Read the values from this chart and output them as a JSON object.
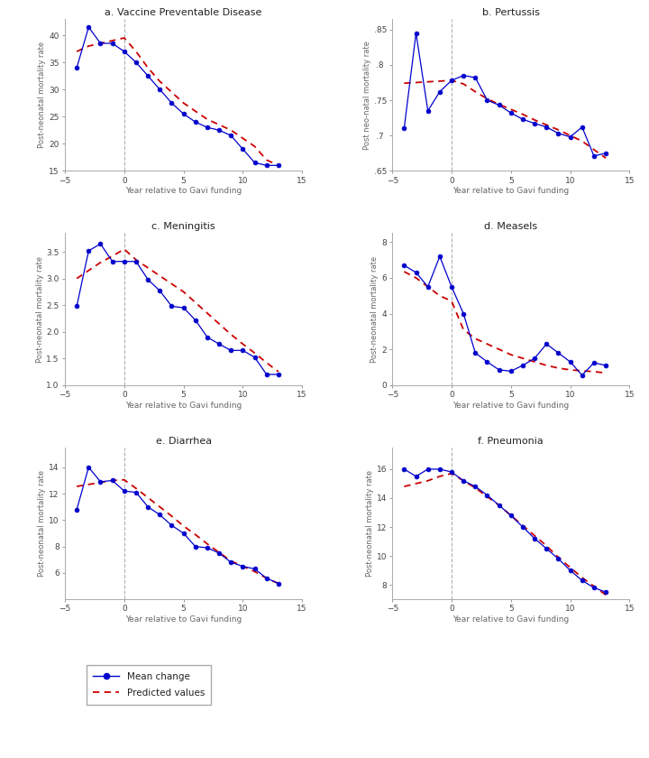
{
  "panels": [
    {
      "title": "a. Vaccine Preventable Disease",
      "ylabel": "Post-neonatal mortality rate",
      "xlabel": "Year relative to Gavi funding",
      "xlim": [
        -5,
        15
      ],
      "ylim": [
        15,
        43
      ],
      "yticks": [
        15,
        20,
        25,
        30,
        35,
        40
      ],
      "xticks": [
        -5,
        0,
        5,
        10,
        15
      ],
      "mean_x": [
        -4,
        -3,
        -2,
        -1,
        0,
        1,
        2,
        3,
        4,
        5,
        6,
        7,
        8,
        9,
        10,
        11,
        12,
        13
      ],
      "mean_y": [
        34.0,
        41.5,
        38.5,
        38.5,
        37.0,
        35.0,
        32.5,
        30.0,
        27.5,
        25.5,
        24.0,
        23.0,
        22.5,
        21.5,
        19.0,
        16.5,
        16.0,
        16.0
      ],
      "pred_x": [
        -4,
        -3,
        -2,
        -1,
        0,
        1,
        2,
        3,
        4,
        5,
        6,
        7,
        8,
        9,
        10,
        11,
        12,
        13
      ],
      "pred_y": [
        37.0,
        38.0,
        38.5,
        39.0,
        39.5,
        37.0,
        34.0,
        31.5,
        29.5,
        27.5,
        26.0,
        24.5,
        23.5,
        22.5,
        21.0,
        19.5,
        17.0,
        16.0
      ]
    },
    {
      "title": "b. Pertussis",
      "ylabel": "Post neo-natal mortality rate",
      "xlabel": "Year relative to Gavi funding",
      "xlim": [
        -5,
        15
      ],
      "ylim": [
        0.65,
        0.865
      ],
      "yticks": [
        0.65,
        0.7,
        0.75,
        0.8,
        0.85
      ],
      "ytick_labels": [
        ".65",
        ".7 ",
        ".75",
        ".8 ",
        ".85"
      ],
      "xticks": [
        -5,
        0,
        5,
        10,
        15
      ],
      "mean_x": [
        -4,
        -3,
        -2,
        -1,
        0,
        1,
        2,
        3,
        4,
        5,
        6,
        7,
        8,
        9,
        10,
        11,
        12,
        13
      ],
      "mean_y": [
        0.71,
        0.845,
        0.735,
        0.762,
        0.778,
        0.785,
        0.782,
        0.75,
        0.743,
        0.732,
        0.723,
        0.717,
        0.712,
        0.703,
        0.698,
        0.712,
        0.671,
        0.675
      ],
      "pred_x": [
        -4,
        -3,
        -2,
        -1,
        0,
        1,
        2,
        3,
        4,
        5,
        6,
        7,
        8,
        9,
        10,
        11,
        12,
        13
      ],
      "pred_y": [
        0.774,
        0.775,
        0.776,
        0.777,
        0.778,
        0.773,
        0.762,
        0.752,
        0.744,
        0.737,
        0.73,
        0.722,
        0.715,
        0.708,
        0.7,
        0.692,
        0.68,
        0.668
      ]
    },
    {
      "title": "c. Meningitis",
      "ylabel": "Post-neonatal mortality rate",
      "xlabel": "Year relative to Gavi funding",
      "xlim": [
        -5,
        15
      ],
      "ylim": [
        1.0,
        3.85
      ],
      "yticks": [
        1.0,
        1.5,
        2.0,
        2.5,
        3.0,
        3.5
      ],
      "xticks": [
        -5,
        0,
        5,
        10,
        15
      ],
      "mean_x": [
        -4,
        -3,
        -2,
        -1,
        0,
        1,
        2,
        3,
        4,
        5,
        6,
        7,
        8,
        9,
        10,
        11,
        12,
        13
      ],
      "mean_y": [
        2.48,
        3.52,
        3.65,
        3.32,
        3.32,
        3.32,
        2.98,
        2.77,
        2.48,
        2.45,
        2.22,
        1.9,
        1.77,
        1.65,
        1.65,
        1.52,
        1.2,
        1.2
      ],
      "pred_x": [
        -4,
        -3,
        -2,
        -1,
        0,
        1,
        2,
        3,
        4,
        5,
        6,
        7,
        8,
        9,
        10,
        11,
        12,
        13
      ],
      "pred_y": [
        3.0,
        3.15,
        3.3,
        3.42,
        3.55,
        3.35,
        3.2,
        3.05,
        2.9,
        2.75,
        2.55,
        2.35,
        2.15,
        1.95,
        1.77,
        1.6,
        1.42,
        1.25
      ]
    },
    {
      "title": "d. Measels",
      "ylabel": "Post-neonatal mortality rate",
      "xlabel": "Year relative to Gavi funding",
      "xlim": [
        -5,
        15
      ],
      "ylim": [
        0,
        8.5
      ],
      "yticks": [
        0,
        2,
        4,
        6,
        8
      ],
      "xticks": [
        -5,
        0,
        5,
        10,
        15
      ],
      "mean_x": [
        -4,
        -3,
        -2,
        -1,
        0,
        1,
        2,
        3,
        4,
        5,
        6,
        7,
        8,
        9,
        10,
        11,
        12,
        13
      ],
      "mean_y": [
        6.7,
        6.3,
        5.5,
        7.2,
        5.5,
        4.0,
        1.8,
        1.3,
        0.85,
        0.78,
        1.1,
        1.5,
        2.3,
        1.8,
        1.3,
        0.55,
        1.25,
        1.1
      ],
      "pred_x": [
        -4,
        -3,
        -2,
        -1,
        0,
        1,
        2,
        3,
        4,
        5,
        6,
        7,
        8,
        9,
        10,
        11,
        12,
        13
      ],
      "pred_y": [
        6.35,
        6.0,
        5.5,
        5.0,
        4.7,
        3.1,
        2.6,
        2.3,
        2.0,
        1.7,
        1.5,
        1.3,
        1.1,
        0.95,
        0.85,
        0.8,
        0.75,
        0.68
      ]
    },
    {
      "title": "e. Diarrhea",
      "ylabel": "Post-neonatal mortality rate",
      "xlabel": "Year relative to Gavi funding",
      "xlim": [
        -5,
        15
      ],
      "ylim": [
        4,
        15.5
      ],
      "yticks": [
        6,
        8,
        10,
        12,
        14
      ],
      "xticks": [
        -5,
        0,
        5,
        10,
        15
      ],
      "mean_x": [
        -4,
        -3,
        -2,
        -1,
        0,
        1,
        2,
        3,
        4,
        5,
        6,
        7,
        8,
        9,
        10,
        11,
        12,
        13
      ],
      "mean_y": [
        10.8,
        14.0,
        12.9,
        13.0,
        12.2,
        12.1,
        11.0,
        10.4,
        9.6,
        9.0,
        8.0,
        7.9,
        7.5,
        6.8,
        6.5,
        6.3,
        5.6,
        5.2
      ],
      "pred_x": [
        -4,
        -3,
        -2,
        -1,
        0,
        1,
        2,
        3,
        4,
        5,
        6,
        7,
        8,
        9,
        10,
        11,
        12,
        13
      ],
      "pred_y": [
        12.55,
        12.7,
        12.85,
        13.0,
        13.05,
        12.4,
        11.7,
        11.0,
        10.3,
        9.55,
        8.9,
        8.2,
        7.55,
        6.9,
        6.5,
        6.1,
        5.6,
        5.2
      ]
    },
    {
      "title": "f. Pneumonia",
      "ylabel": "Post-neonatal mortality rate",
      "xlabel": "Year relative to Gavi funding",
      "xlim": [
        -5,
        15
      ],
      "ylim": [
        7,
        17.5
      ],
      "yticks": [
        8,
        10,
        12,
        14,
        16
      ],
      "xticks": [
        -5,
        0,
        5,
        10,
        15
      ],
      "mean_x": [
        -4,
        -3,
        -2,
        -1,
        0,
        1,
        2,
        3,
        4,
        5,
        6,
        7,
        8,
        9,
        10,
        11,
        12,
        13
      ],
      "mean_y": [
        16.0,
        15.5,
        16.0,
        16.0,
        15.8,
        15.2,
        14.8,
        14.2,
        13.5,
        12.8,
        12.0,
        11.2,
        10.5,
        9.8,
        9.0,
        8.3,
        7.8,
        7.5
      ],
      "pred_x": [
        -4,
        -3,
        -2,
        -1,
        0,
        1,
        2,
        3,
        4,
        5,
        6,
        7,
        8,
        9,
        10,
        11,
        12,
        13
      ],
      "pred_y": [
        14.8,
        15.0,
        15.2,
        15.5,
        15.7,
        15.2,
        14.7,
        14.1,
        13.5,
        12.8,
        12.1,
        11.4,
        10.7,
        9.9,
        9.2,
        8.5,
        7.9,
        7.3
      ]
    }
  ],
  "mean_color": "#0000cc",
  "pred_color": "#cc0000",
  "vline_color": "#b0b0b0",
  "bg_color": "#ffffff",
  "legend_labels": [
    "Mean change",
    "Predicted values"
  ]
}
